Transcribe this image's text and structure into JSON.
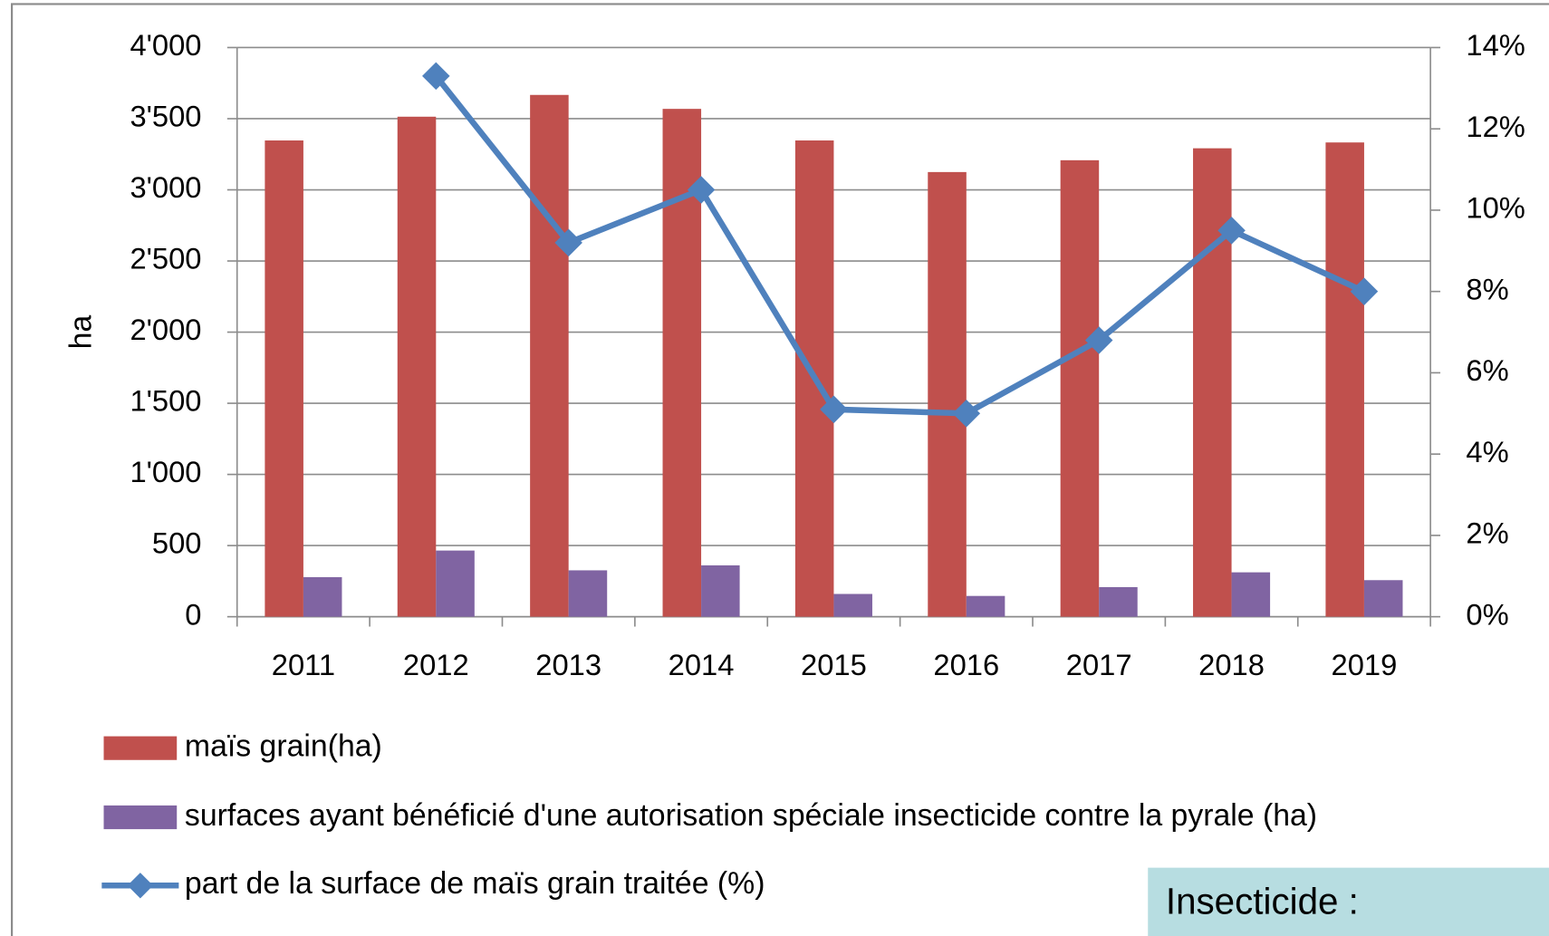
{
  "chart_data": {
    "type": "bar-line",
    "y_label": "ha",
    "categories": [
      "2011",
      "2012",
      "2013",
      "2014",
      "2015",
      "2016",
      "2017",
      "2018",
      "2019"
    ],
    "series": [
      {
        "name": "maïs grain(ha)",
        "type": "bar",
        "color": "#c0504d",
        "values": [
          3347,
          3514,
          3667,
          3569,
          3347,
          3125,
          3208,
          3292,
          3333
        ]
      },
      {
        "name": "surfaces ayant bénéficié d'une autorisation spéciale insecticide contre la pyrale (ha)",
        "type": "bar",
        "color": "#8064a2",
        "values": [
          278,
          465,
          326,
          361,
          160,
          146,
          208,
          312,
          257
        ]
      },
      {
        "name": "part de la surface de maïs grain traitée (%)",
        "type": "line",
        "axis": "y2",
        "color": "#4f81bd",
        "values": [
          null,
          13.3,
          9.2,
          10.5,
          5.1,
          5.0,
          6.8,
          9.5,
          8.0
        ]
      }
    ],
    "ylim": [
      0,
      4000
    ],
    "yticks": [
      {
        "value": 0,
        "label": "0"
      },
      {
        "value": 500,
        "label": "500"
      },
      {
        "value": 1000,
        "label": "1'000"
      },
      {
        "value": 1500,
        "label": "1'500"
      },
      {
        "value": 2000,
        "label": "2'000"
      },
      {
        "value": 2500,
        "label": "2'500"
      },
      {
        "value": 3000,
        "label": "3'000"
      },
      {
        "value": 3500,
        "label": "3'500"
      },
      {
        "value": 4000,
        "label": "4'000"
      }
    ],
    "y2lim": [
      0,
      14
    ],
    "y2ticks": [
      {
        "value": 0,
        "label": "0%"
      },
      {
        "value": 2,
        "label": "2%"
      },
      {
        "value": 4,
        "label": "4%"
      },
      {
        "value": 6,
        "label": "6%"
      },
      {
        "value": 8,
        "label": "8%"
      },
      {
        "value": 10,
        "label": "10%"
      },
      {
        "value": 12,
        "label": "12%"
      },
      {
        "value": 14,
        "label": "14%"
      }
    ],
    "grid": true,
    "legend": "bottom",
    "annotation": "Insecticide :"
  }
}
